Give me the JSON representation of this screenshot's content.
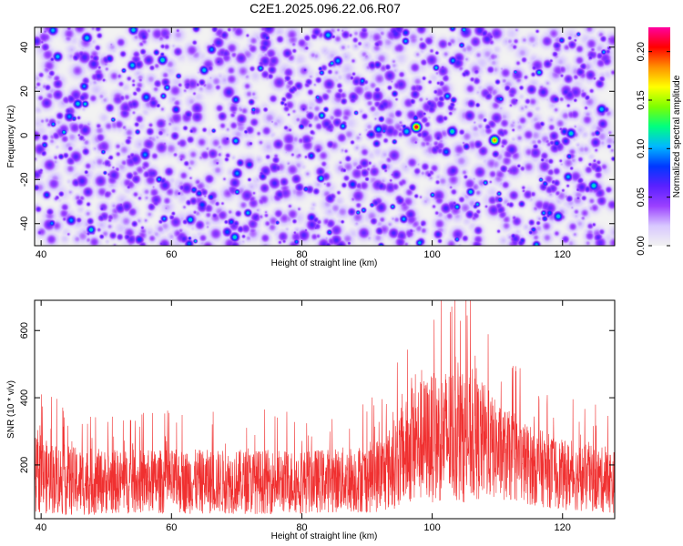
{
  "title": "C2E1.2025.096.22.06.R07",
  "chart_data": [
    {
      "type": "heatmap",
      "xlabel": "Height of straight line (km)",
      "ylabel": "Frequency (Hz)",
      "xlim": [
        39,
        128
      ],
      "ylim": [
        -50,
        49
      ],
      "x_ticks": [
        "40",
        "60",
        "80",
        "100",
        "120"
      ],
      "y_ticks": [
        "40",
        "20",
        "0",
        "-20",
        "-40"
      ],
      "colorbar": {
        "label": "Normalized spectral amplitude",
        "range": [
          0.0,
          0.225
        ],
        "ticks": [
          "0.00",
          "0.05",
          "0.10",
          "0.15",
          "0.20"
        ],
        "colors": [
          "#f2f2f2",
          "#d8c8ff",
          "#9b40ff",
          "#5a20ff",
          "#0038ff",
          "#00b8ff",
          "#00ff80",
          "#7dff00",
          "#ffff00",
          "#ff9000",
          "#ff0000",
          "#ff00a0"
        ]
      },
      "peaks": [
        {
          "x": 97.5,
          "y": 4,
          "value": 0.22
        },
        {
          "x": 109.5,
          "y": -2,
          "value": 0.19
        },
        {
          "x": 103,
          "y": 2,
          "value": 0.12
        },
        {
          "x": 96,
          "y": 2,
          "value": 0.11
        },
        {
          "x": 70,
          "y": -17,
          "value": 0.1
        },
        {
          "x": 55,
          "y": -47,
          "value": 0.08
        }
      ],
      "background_level": 0.04,
      "grid": false
    },
    {
      "type": "line",
      "xlabel": "Height of straight line (km)",
      "ylabel": "SNR (10 * v/v)",
      "xlim": [
        39,
        128
      ],
      "ylim": [
        40,
        690
      ],
      "x_ticks": [
        "40",
        "60",
        "80",
        "100",
        "120"
      ],
      "y_ticks": [
        "600",
        "400",
        "200"
      ],
      "series": [
        {
          "color": "#f03030",
          "envelope": {
            "x": [
              39,
              45,
              50,
              60,
              70,
              80,
              85,
              90,
              93,
              95,
              98,
              100,
              103,
              105,
              108,
              110,
              115,
              120,
              128
            ],
            "mean": [
              170,
              150,
              150,
              150,
              150,
              150,
              155,
              160,
              180,
              220,
              270,
              280,
              290,
              280,
              270,
              240,
              200,
              170,
              150
            ],
            "amplitude": [
              140,
              130,
              120,
              120,
              120,
              120,
              120,
              130,
              150,
              180,
              230,
              240,
              260,
              240,
              220,
              180,
              150,
              130,
              120
            ]
          },
          "max_value": 690
        }
      ],
      "grid": false
    }
  ]
}
